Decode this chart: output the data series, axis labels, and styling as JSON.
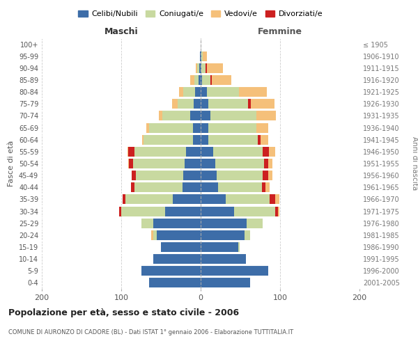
{
  "age_groups": [
    "0-4",
    "5-9",
    "10-14",
    "15-19",
    "20-24",
    "25-29",
    "30-34",
    "35-39",
    "40-44",
    "45-49",
    "50-54",
    "55-59",
    "60-64",
    "65-69",
    "70-74",
    "75-79",
    "80-84",
    "85-89",
    "90-94",
    "95-99",
    "100+"
  ],
  "birth_years": [
    "2001-2005",
    "1996-2000",
    "1991-1995",
    "1986-1990",
    "1981-1985",
    "1976-1980",
    "1971-1975",
    "1966-1970",
    "1961-1965",
    "1956-1960",
    "1951-1955",
    "1946-1950",
    "1941-1945",
    "1936-1940",
    "1931-1935",
    "1926-1930",
    "1921-1925",
    "1916-1920",
    "1911-1915",
    "1906-1910",
    "≤ 1905"
  ],
  "maschi_celibi": [
    65,
    75,
    60,
    50,
    55,
    60,
    45,
    35,
    23,
    22,
    20,
    18,
    10,
    10,
    13,
    9,
    7,
    3,
    2,
    1,
    0
  ],
  "maschi_coniugati": [
    0,
    0,
    0,
    0,
    5,
    15,
    55,
    60,
    60,
    60,
    65,
    65,
    62,
    55,
    35,
    20,
    15,
    5,
    2,
    0,
    0
  ],
  "maschi_vedovi": [
    0,
    0,
    0,
    0,
    2,
    0,
    0,
    0,
    0,
    0,
    1,
    1,
    2,
    3,
    5,
    7,
    5,
    5,
    2,
    0,
    0
  ],
  "maschi_divorziati": [
    0,
    0,
    0,
    0,
    0,
    0,
    3,
    3,
    5,
    5,
    5,
    8,
    0,
    0,
    0,
    0,
    0,
    0,
    0,
    0,
    0
  ],
  "femmine_celibi": [
    62,
    85,
    57,
    47,
    55,
    58,
    42,
    32,
    22,
    20,
    18,
    16,
    10,
    10,
    12,
    10,
    8,
    2,
    1,
    1,
    0
  ],
  "femmine_coniugati": [
    0,
    0,
    0,
    2,
    7,
    20,
    52,
    55,
    55,
    58,
    62,
    62,
    62,
    60,
    58,
    50,
    40,
    10,
    5,
    2,
    0
  ],
  "femmine_vedovi": [
    0,
    0,
    0,
    0,
    0,
    0,
    2,
    5,
    5,
    5,
    5,
    8,
    10,
    15,
    25,
    30,
    35,
    25,
    20,
    5,
    0
  ],
  "femmine_divorziati": [
    0,
    0,
    0,
    0,
    0,
    0,
    3,
    7,
    5,
    7,
    5,
    8,
    3,
    0,
    0,
    3,
    0,
    2,
    2,
    0,
    0
  ],
  "color_celibi": "#3d6da8",
  "color_coniugati": "#c8d9a0",
  "color_vedovi": "#f5c07a",
  "color_divorziati": "#cc2020",
  "title": "Popolazione per età, sesso e stato civile - 2006",
  "subtitle": "COMUNE DI AURONZO DI CADORE (BL) - Dati ISTAT 1° gennaio 2006 - Elaborazione TUTTITALIA.IT",
  "label_maschi": "Maschi",
  "label_femmine": "Femmine",
  "ylabel_left": "Fasce di età",
  "ylabel_right": "Anni di nascita",
  "xlim": 200,
  "bg_color": "#ffffff",
  "grid_color": "#cccccc",
  "legend_labels": [
    "Celibi/Nubili",
    "Coniugati/e",
    "Vedovi/e",
    "Divorziati/e"
  ]
}
